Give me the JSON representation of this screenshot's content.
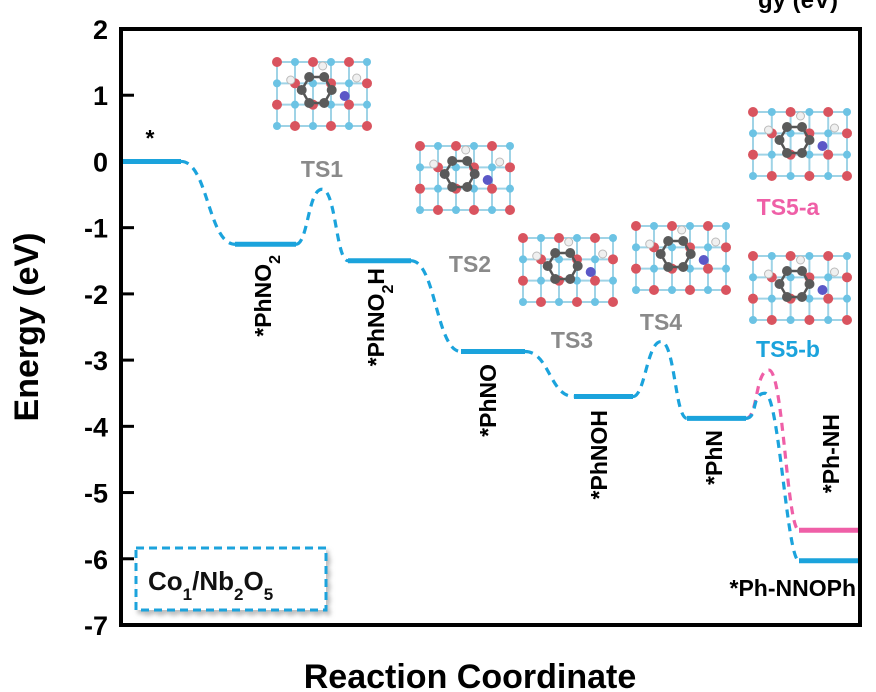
{
  "chart_data": {
    "type": "line",
    "xlabel": "Reaction Coordinate",
    "ylabel": "Energy (eV)",
    "ylim": [
      -7,
      2
    ],
    "yticks": [
      2,
      1,
      0,
      -1,
      -2,
      -3,
      -4,
      -5,
      -6,
      -7
    ],
    "grid": false,
    "legend": {
      "placement": "bottom-left",
      "text": "Co",
      "sub1": "1",
      "mid": "/Nb",
      "sub2": "2",
      "mid2": "O",
      "sub3": "5"
    },
    "colors": {
      "path_b": "#1ba3dc",
      "path_a": "#ef5fa7",
      "ts_label": "#8a8a8a",
      "axis": "#000000"
    },
    "top_right_partial_text": "gy (eV)",
    "states": [
      {
        "name": "*",
        "base": "*",
        "sub": "",
        "tail": "",
        "energy": 0.0
      },
      {
        "name": "*PhNO2",
        "base": "*PhNO",
        "sub": "2",
        "tail": "",
        "energy": -1.25
      },
      {
        "name": "*PhNO2H",
        "base": "*PhNO",
        "sub": "2",
        "tail": "H",
        "energy": -1.5
      },
      {
        "name": "*PhNO",
        "base": "*PhNO",
        "sub": "",
        "tail": "",
        "energy": -2.87
      },
      {
        "name": "*PhNOH",
        "base": "*PhNOH",
        "sub": "",
        "tail": "",
        "energy": -3.55
      },
      {
        "name": "*PhN",
        "base": "*PhN",
        "sub": "",
        "tail": "",
        "energy": -3.88
      },
      {
        "name": "*Ph-NH",
        "base": "*Ph-NH",
        "sub": "",
        "tail": "",
        "energy": -5.57
      },
      {
        "name": "*Ph-NNOPh",
        "base": "*Ph-NNOPh",
        "sub": "",
        "tail": "",
        "energy": -6.03
      }
    ],
    "transition_states": [
      {
        "name": "TS1",
        "energy": -0.42
      },
      {
        "name": "TS2",
        "energy": null
      },
      {
        "name": "TS3",
        "energy": null
      },
      {
        "name": "TS4",
        "energy": -2.72
      },
      {
        "name": "TS5-a",
        "energy": -3.15
      },
      {
        "name": "TS5-b",
        "energy": -3.5
      }
    ]
  }
}
